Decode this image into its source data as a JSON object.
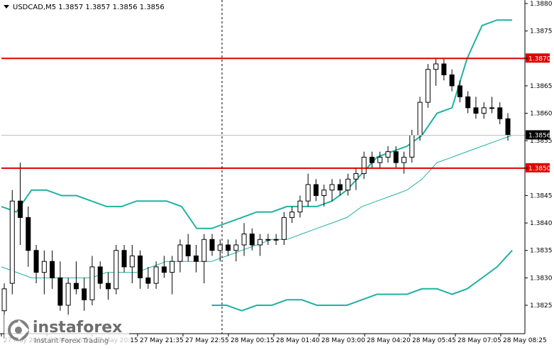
{
  "header": {
    "symbol_info": "USDCAD,M5  1.3857 1.3857 1.3856 1.3856"
  },
  "watermark": {
    "brand": "instaforex",
    "tagline": "Instant Forex Trading"
  },
  "colors": {
    "background": "#ffffff",
    "candle": "#000000",
    "bands": "#20b2a0",
    "level_line": "#e00000",
    "level_label_bg": "#e00000",
    "current_label_bg": "#000000",
    "crosshair": "#000000"
  },
  "chart_data": {
    "type": "candlestick",
    "symbol": "USDCAD",
    "timeframe": "M5",
    "y_range": [
      1.382,
      1.388
    ],
    "y_ticks": [
      "1.3880",
      "1.3875",
      "1.3870",
      "1.3865",
      "1.3860",
      "1.3855",
      "1.3850",
      "1.3845",
      "1.3840",
      "1.3835",
      "1.3830",
      "1.3825"
    ],
    "x_ticks": [
      "27 May 2019",
      "27 May 18:55",
      "27 May 20:15",
      "27 May 21:35",
      "27 May 22:55",
      "28 May 00:15",
      "28 May 01:40",
      "28 May 03:00",
      "28 May 04:20",
      "28 May 05:45",
      "28 May 07:05",
      "28 May 08:25"
    ],
    "levels": [
      {
        "label": "1.3870",
        "value": 1.387
      },
      {
        "label": "1.3850",
        "value": 1.385
      }
    ],
    "current_price": {
      "label": "1.3856",
      "value": 1.3856
    },
    "bands_upper": [
      1.3843,
      1.3842,
      1.3846,
      1.3846,
      1.3845,
      1.3845,
      1.3844,
      1.3843,
      1.3843,
      1.3844,
      1.3844,
      1.3844,
      1.3843,
      1.3839,
      1.3839,
      1.384,
      1.3841,
      1.3842,
      1.3842,
      1.3843,
      1.3843,
      1.3843,
      1.3844,
      1.3846,
      1.3849,
      1.3852,
      1.3853,
      1.3854,
      1.3856,
      1.386,
      1.3861,
      1.387,
      1.3876,
      1.3877,
      1.3877
    ],
    "bands_middle": [
      1.3832,
      1.3831,
      1.383,
      1.383,
      1.383,
      1.383,
      1.383,
      1.3831,
      1.3831,
      1.3831,
      1.3832,
      1.3833,
      1.3833,
      1.3833,
      1.3833,
      1.3834,
      1.3835,
      1.3836,
      1.3837,
      1.3837,
      1.3838,
      1.3839,
      1.384,
      1.3841,
      1.3843,
      1.3844,
      1.3845,
      1.3846,
      1.3848,
      1.3851,
      1.3852,
      1.3853,
      1.3854,
      1.3855,
      1.3856
    ],
    "bands_lower": [
      null,
      null,
      null,
      null,
      null,
      null,
      null,
      null,
      null,
      null,
      null,
      null,
      null,
      null,
      1.3825,
      1.3825,
      1.3824,
      1.3825,
      1.3825,
      1.3826,
      1.3826,
      1.3825,
      1.3825,
      1.3825,
      1.3826,
      1.3827,
      1.3827,
      1.3827,
      1.3828,
      1.3828,
      1.3827,
      1.3828,
      1.383,
      1.3832,
      1.3835
    ],
    "candles": [
      {
        "o": 1.3824,
        "h": 1.3829,
        "l": 1.3819,
        "c": 1.3828
      },
      {
        "o": 1.3829,
        "h": 1.3846,
        "l": 1.3827,
        "c": 1.3844
      },
      {
        "o": 1.3844,
        "h": 1.3851,
        "l": 1.3836,
        "c": 1.3841
      },
      {
        "o": 1.3841,
        "h": 1.3843,
        "l": 1.3832,
        "c": 1.3835
      },
      {
        "o": 1.3835,
        "h": 1.3836,
        "l": 1.3829,
        "c": 1.3831
      },
      {
        "o": 1.3831,
        "h": 1.3835,
        "l": 1.3827,
        "c": 1.3833
      },
      {
        "o": 1.3833,
        "h": 1.3835,
        "l": 1.3828,
        "c": 1.383
      },
      {
        "o": 1.383,
        "h": 1.3833,
        "l": 1.3824,
        "c": 1.3825
      },
      {
        "o": 1.3825,
        "h": 1.383,
        "l": 1.3823,
        "c": 1.3829
      },
      {
        "o": 1.3829,
        "h": 1.3833,
        "l": 1.3827,
        "c": 1.3828
      },
      {
        "o": 1.3828,
        "h": 1.383,
        "l": 1.3824,
        "c": 1.3826
      },
      {
        "o": 1.3826,
        "h": 1.3834,
        "l": 1.3825,
        "c": 1.3832
      },
      {
        "o": 1.3832,
        "h": 1.3833,
        "l": 1.3828,
        "c": 1.3829
      },
      {
        "o": 1.3829,
        "h": 1.3831,
        "l": 1.3826,
        "c": 1.3828
      },
      {
        "o": 1.3828,
        "h": 1.3836,
        "l": 1.3827,
        "c": 1.3835
      },
      {
        "o": 1.3835,
        "h": 1.3836,
        "l": 1.3831,
        "c": 1.3832
      },
      {
        "o": 1.3832,
        "h": 1.3836,
        "l": 1.3829,
        "c": 1.3834
      },
      {
        "o": 1.3834,
        "h": 1.3835,
        "l": 1.3828,
        "c": 1.383
      },
      {
        "o": 1.383,
        "h": 1.3832,
        "l": 1.3828,
        "c": 1.3829
      },
      {
        "o": 1.3829,
        "h": 1.3833,
        "l": 1.3828,
        "c": 1.3832
      },
      {
        "o": 1.3832,
        "h": 1.3834,
        "l": 1.383,
        "c": 1.3831
      },
      {
        "o": 1.3831,
        "h": 1.3834,
        "l": 1.3827,
        "c": 1.3833
      },
      {
        "o": 1.3833,
        "h": 1.3837,
        "l": 1.3831,
        "c": 1.3836
      },
      {
        "o": 1.3836,
        "h": 1.3838,
        "l": 1.3833,
        "c": 1.3834
      },
      {
        "o": 1.3834,
        "h": 1.3836,
        "l": 1.3831,
        "c": 1.3833
      },
      {
        "o": 1.3833,
        "h": 1.3838,
        "l": 1.3829,
        "c": 1.3837
      },
      {
        "o": 1.3837,
        "h": 1.3838,
        "l": 1.3834,
        "c": 1.3835
      },
      {
        "o": 1.3835,
        "h": 1.3837,
        "l": 1.3833,
        "c": 1.3836
      },
      {
        "o": 1.3836,
        "h": 1.3837,
        "l": 1.3834,
        "c": 1.3835
      },
      {
        "o": 1.3835,
        "h": 1.3837,
        "l": 1.3833,
        "c": 1.3836
      },
      {
        "o": 1.3836,
        "h": 1.384,
        "l": 1.3834,
        "c": 1.3838
      },
      {
        "o": 1.3838,
        "h": 1.3839,
        "l": 1.3835,
        "c": 1.3836
      },
      {
        "o": 1.3836,
        "h": 1.3838,
        "l": 1.3834,
        "c": 1.3837
      },
      {
        "o": 1.3837,
        "h": 1.3838,
        "l": 1.3836,
        "c": 1.3837
      },
      {
        "o": 1.3837,
        "h": 1.3838,
        "l": 1.3836,
        "c": 1.3837
      },
      {
        "o": 1.3837,
        "h": 1.3842,
        "l": 1.3836,
        "c": 1.3841
      },
      {
        "o": 1.3841,
        "h": 1.3843,
        "l": 1.384,
        "c": 1.3842
      },
      {
        "o": 1.3842,
        "h": 1.3845,
        "l": 1.3841,
        "c": 1.3844
      },
      {
        "o": 1.3844,
        "h": 1.3849,
        "l": 1.3843,
        "c": 1.3847
      },
      {
        "o": 1.3847,
        "h": 1.3848,
        "l": 1.3844,
        "c": 1.3845
      },
      {
        "o": 1.3845,
        "h": 1.3847,
        "l": 1.3843,
        "c": 1.3846
      },
      {
        "o": 1.3846,
        "h": 1.3848,
        "l": 1.3844,
        "c": 1.3847
      },
      {
        "o": 1.3847,
        "h": 1.3848,
        "l": 1.3845,
        "c": 1.3846
      },
      {
        "o": 1.3846,
        "h": 1.3849,
        "l": 1.3845,
        "c": 1.3848
      },
      {
        "o": 1.3848,
        "h": 1.385,
        "l": 1.3846,
        "c": 1.3849
      },
      {
        "o": 1.3849,
        "h": 1.3853,
        "l": 1.3848,
        "c": 1.3852
      },
      {
        "o": 1.3852,
        "h": 1.3853,
        "l": 1.385,
        "c": 1.3851
      },
      {
        "o": 1.3851,
        "h": 1.3853,
        "l": 1.385,
        "c": 1.3852
      },
      {
        "o": 1.3852,
        "h": 1.3854,
        "l": 1.3851,
        "c": 1.3853
      },
      {
        "o": 1.3853,
        "h": 1.3854,
        "l": 1.385,
        "c": 1.3851
      },
      {
        "o": 1.3851,
        "h": 1.3853,
        "l": 1.3849,
        "c": 1.3852
      },
      {
        "o": 1.3852,
        "h": 1.3857,
        "l": 1.3851,
        "c": 1.3856
      },
      {
        "o": 1.3856,
        "h": 1.3863,
        "l": 1.3855,
        "c": 1.3862
      },
      {
        "o": 1.3862,
        "h": 1.3869,
        "l": 1.3861,
        "c": 1.3868
      },
      {
        "o": 1.3868,
        "h": 1.387,
        "l": 1.3865,
        "c": 1.3869
      },
      {
        "o": 1.3869,
        "h": 1.387,
        "l": 1.3866,
        "c": 1.3867
      },
      {
        "o": 1.3867,
        "h": 1.3868,
        "l": 1.3864,
        "c": 1.3865
      },
      {
        "o": 1.3865,
        "h": 1.3866,
        "l": 1.3862,
        "c": 1.3863
      },
      {
        "o": 1.3863,
        "h": 1.3864,
        "l": 1.386,
        "c": 1.3861
      },
      {
        "o": 1.3861,
        "h": 1.3863,
        "l": 1.3859,
        "c": 1.386
      },
      {
        "o": 1.386,
        "h": 1.3862,
        "l": 1.3859,
        "c": 1.3861
      },
      {
        "o": 1.3861,
        "h": 1.3863,
        "l": 1.386,
        "c": 1.3861
      },
      {
        "o": 1.3861,
        "h": 1.3862,
        "l": 1.3858,
        "c": 1.3859
      },
      {
        "o": 1.3859,
        "h": 1.386,
        "l": 1.3855,
        "c": 1.3856
      }
    ]
  }
}
